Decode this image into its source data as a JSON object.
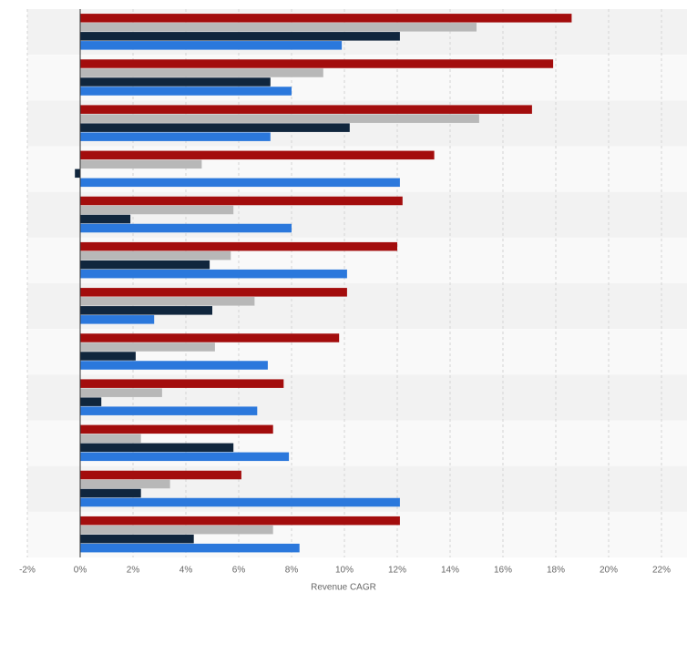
{
  "chart_data": {
    "type": "hbar",
    "x_label": "Revenue CAGR",
    "categories": [
      null,
      null,
      null,
      null,
      null,
      null,
      null,
      null,
      null,
      null,
      null,
      null
    ],
    "series": [
      {
        "color": "#a30d0d",
        "values": [
          18.6,
          17.9,
          17.1,
          13.4,
          12.2,
          12.0,
          10.1,
          9.8,
          7.7,
          7.3,
          6.1,
          12.1
        ]
      },
      {
        "color": "#b8b8b8",
        "values": [
          15.0,
          9.2,
          15.1,
          4.6,
          5.8,
          5.7,
          6.6,
          5.1,
          3.1,
          2.3,
          3.4,
          7.3
        ]
      },
      {
        "color": "#10263d",
        "values": [
          12.1,
          7.2,
          10.2,
          -0.2,
          1.9,
          4.9,
          5.0,
          2.1,
          0.8,
          5.8,
          2.3,
          4.3
        ]
      },
      {
        "color": "#2b78dc",
        "values": [
          9.9,
          8.0,
          7.2,
          12.1,
          8.0,
          10.1,
          2.8,
          7.1,
          6.7,
          7.9,
          12.1,
          8.3
        ]
      }
    ],
    "xlim": [
      -2,
      22
    ],
    "xticks": [
      {
        "value": -2,
        "label": "-2%"
      },
      {
        "value": 0,
        "label": "0%"
      },
      {
        "value": 2,
        "label": "2%"
      },
      {
        "value": 4,
        "label": "4%"
      },
      {
        "value": 6,
        "label": "6%"
      },
      {
        "value": 8,
        "label": "8%"
      },
      {
        "value": 10,
        "label": "10%"
      },
      {
        "value": 12,
        "label": "12%"
      },
      {
        "value": 14,
        "label": "14%"
      },
      {
        "value": 16,
        "label": "16%"
      },
      {
        "value": 18,
        "label": "18%"
      },
      {
        "value": 20,
        "label": "20%"
      },
      {
        "value": 22,
        "label": "22%"
      }
    ],
    "grid": true
  }
}
